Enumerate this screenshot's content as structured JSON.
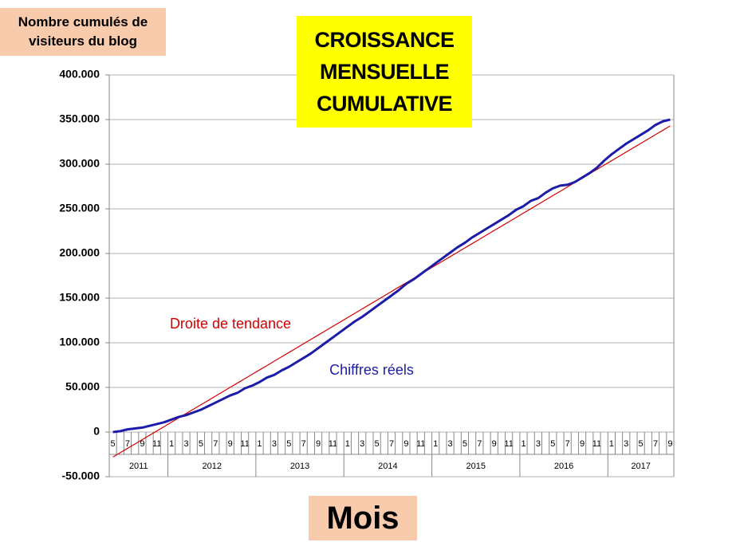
{
  "chart_data": {
    "type": "line",
    "title": "CROISSANCE MENSUELLE CUMULATIVE",
    "y_label": "Nombre cumulés de visiteurs du blog",
    "x_label": "Mois",
    "categories": [
      "5",
      null,
      "7",
      null,
      "9",
      null,
      "11",
      null,
      "1",
      null,
      "3",
      null,
      "5",
      null,
      "7",
      null,
      "9",
      null,
      "11",
      null,
      "1",
      null,
      "3",
      null,
      "5",
      null,
      "7",
      null,
      "9",
      null,
      "11",
      null,
      "1",
      null,
      "3",
      null,
      "5",
      null,
      "7",
      null,
      "9",
      null,
      "11",
      null,
      "1",
      null,
      "3",
      null,
      "5",
      null,
      "7",
      null,
      "9",
      null,
      "11",
      null,
      "1",
      null,
      "3",
      null,
      "5",
      null,
      "7",
      null,
      "9",
      null,
      "11",
      null,
      "1",
      null,
      "3",
      null,
      "5",
      null,
      "7",
      null,
      "9"
    ],
    "groups": [
      {
        "label": "2011",
        "count": 8
      },
      {
        "label": "2012",
        "count": 12
      },
      {
        "label": "2013",
        "count": 12
      },
      {
        "label": "2014",
        "count": 12
      },
      {
        "label": "2015",
        "count": 12
      },
      {
        "label": "2016",
        "count": 12
      },
      {
        "label": "2017",
        "count": 9
      }
    ],
    "series": [
      {
        "name": "Droite de tendance",
        "color": "#d40000",
        "values": [
          -28000,
          -23120,
          -18240,
          -13360,
          -8480,
          -3600,
          1280,
          6160,
          11040,
          15920,
          20800,
          25680,
          30560,
          35440,
          40320,
          45200,
          50080,
          54960,
          59840,
          64720,
          69600,
          74480,
          79360,
          84240,
          89120,
          94000,
          98880,
          103760,
          108640,
          113520,
          118400,
          123280,
          128160,
          133040,
          137920,
          142800,
          147680,
          152560,
          157440,
          162320,
          167200,
          172080,
          176960,
          181840,
          186720,
          191600,
          196480,
          201360,
          206240,
          211120,
          216000,
          220880,
          225760,
          230640,
          235520,
          240400,
          245280,
          250160,
          255040,
          259920,
          264800,
          269680,
          274560,
          279440,
          284320,
          289200,
          294080,
          298960,
          303840,
          308720,
          313600,
          318480,
          323360,
          328240,
          333120,
          338000,
          342880
        ]
      },
      {
        "name": "Chiffres réels",
        "color": "#1c1ca8",
        "values": [
          0,
          1000,
          3000,
          4000,
          5000,
          7000,
          9000,
          11000,
          14000,
          17000,
          19000,
          22000,
          25000,
          29000,
          33000,
          37000,
          41000,
          44000,
          49000,
          52000,
          56000,
          61000,
          64000,
          69000,
          73000,
          78000,
          83000,
          88000,
          94000,
          100000,
          106000,
          112000,
          118000,
          124000,
          129000,
          135000,
          141000,
          147000,
          153000,
          159000,
          166000,
          171000,
          177000,
          183000,
          189000,
          195000,
          201000,
          207000,
          212000,
          218000,
          223000,
          228000,
          233000,
          238000,
          243000,
          249000,
          253000,
          259000,
          262000,
          268000,
          273000,
          276000,
          277000,
          280000,
          285000,
          290000,
          296000,
          304000,
          311000,
          317000,
          323000,
          328000,
          333000,
          338000,
          344000,
          348000,
          350000
        ]
      }
    ],
    "ylim": [
      -50000,
      400000
    ],
    "yticks": [
      {
        "value": -50000,
        "label": "-50.000"
      },
      0,
      {
        "value": 50000,
        "label": "50.000"
      },
      {
        "value": 100000,
        "label": "100.000"
      },
      {
        "value": 150000,
        "label": "150.000"
      },
      {
        "value": 200000,
        "label": "200.000"
      },
      {
        "value": 250000,
        "label": "250.000"
      },
      {
        "value": 300000,
        "label": "300.000"
      },
      {
        "value": 350000,
        "label": "350.000"
      },
      {
        "value": 400000,
        "label": "400.000"
      }
    ],
    "grid": true
  }
}
